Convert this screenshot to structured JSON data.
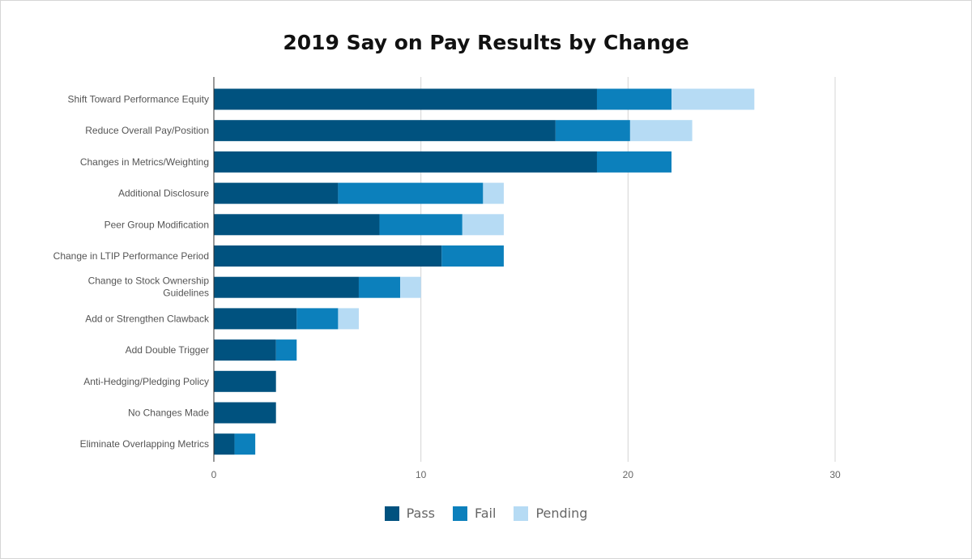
{
  "chart_data": {
    "type": "bar",
    "orientation": "horizontal",
    "stacked": true,
    "title": "2019 Say on Pay Results by Change",
    "xlabel": "",
    "ylabel": "",
    "xlim": [
      0,
      36
    ],
    "x_ticks": [
      0,
      10,
      20,
      30
    ],
    "grid": true,
    "legend_position": "bottom",
    "categories": [
      "Shift Toward Performance Equity",
      "Reduce Overall Pay/Position",
      "Changes in Metrics/Weighting",
      "Additional Disclosure",
      "Peer Group Modification",
      "Change in LTIP Performance Period",
      "Change to Stock Ownership Guidelines",
      "Add or Strengthen Clawback",
      "Add Double Trigger",
      "Anti-Hedging/Pledging Policy",
      "No Changes Made",
      "Eliminate Overlapping Metrics"
    ],
    "series": [
      {
        "name": "Pass",
        "color": "#00527f",
        "values": [
          18.5,
          16.5,
          18.5,
          6,
          8,
          11,
          7,
          4,
          3,
          3,
          3,
          1
        ]
      },
      {
        "name": "Fail",
        "color": "#0c80bc",
        "values": [
          3.6,
          3.6,
          3.6,
          7,
          4,
          3,
          2,
          2,
          1,
          0,
          0,
          1
        ]
      },
      {
        "name": "Pending",
        "color": "#b6dbf4",
        "values": [
          4,
          3,
          0,
          1,
          2,
          0,
          1,
          1,
          0,
          0,
          0,
          0
        ]
      }
    ]
  }
}
